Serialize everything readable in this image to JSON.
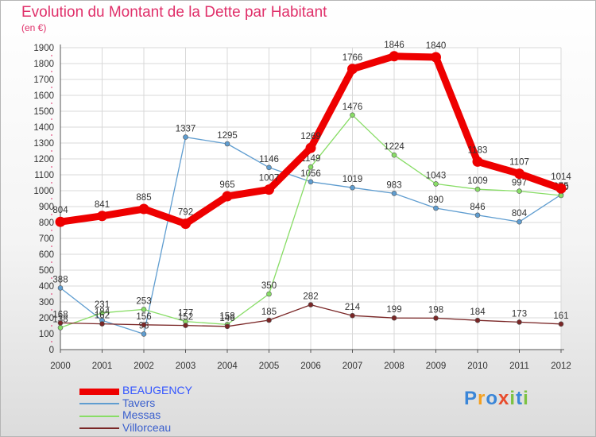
{
  "header": {
    "title": "Evolution du Montant de la Dette par Habitant",
    "subtitle": "(en €)"
  },
  "brand": {
    "text": "Proxiti",
    "colors": [
      "#3a86d8",
      "#f4a020",
      "#3a86d8",
      "#e84b2c",
      "#7cc242",
      "#3a86d8",
      "#7cc242"
    ]
  },
  "chart_data": {
    "type": "line",
    "title": "Evolution du Montant de la Dette par Habitant",
    "subtitle": "(en €)",
    "x": [
      "2000",
      "2001",
      "2002",
      "2003",
      "2004",
      "2005",
      "2006",
      "2007",
      "2008",
      "2009",
      "2010",
      "2011",
      "2012"
    ],
    "ylim": [
      0,
      1900
    ],
    "yticks": [
      0,
      100,
      200,
      300,
      400,
      500,
      600,
      700,
      800,
      900,
      1000,
      1100,
      1200,
      1300,
      1400,
      1500,
      1600,
      1700,
      1800,
      1900
    ],
    "grid": true,
    "legend": "bottom-left",
    "series": [
      {
        "name": "BEAUGENCY",
        "color": "#ee0000",
        "bold": true,
        "values": [
          804,
          841,
          885,
          792,
          965,
          1007,
          1269,
          1766,
          1846,
          1840,
          1183,
          1107,
          1014
        ]
      },
      {
        "name": "Tavers",
        "color": "#5f9dd0",
        "bold": false,
        "values": [
          388,
          184,
          98,
          1337,
          1295,
          1146,
          1056,
          1019,
          983,
          890,
          846,
          804,
          975
        ]
      },
      {
        "name": "Messas",
        "color": "#88dd66",
        "bold": false,
        "values": [
          138,
          231,
          253,
          177,
          158,
          350,
          1149,
          1476,
          1224,
          1043,
          1009,
          997,
          970
        ]
      },
      {
        "name": "Villorceau",
        "color": "#7a2626",
        "bold": false,
        "values": [
          168,
          162,
          156,
          152,
          146,
          185,
          282,
          214,
          199,
          198,
          184,
          173,
          161
        ]
      }
    ]
  }
}
